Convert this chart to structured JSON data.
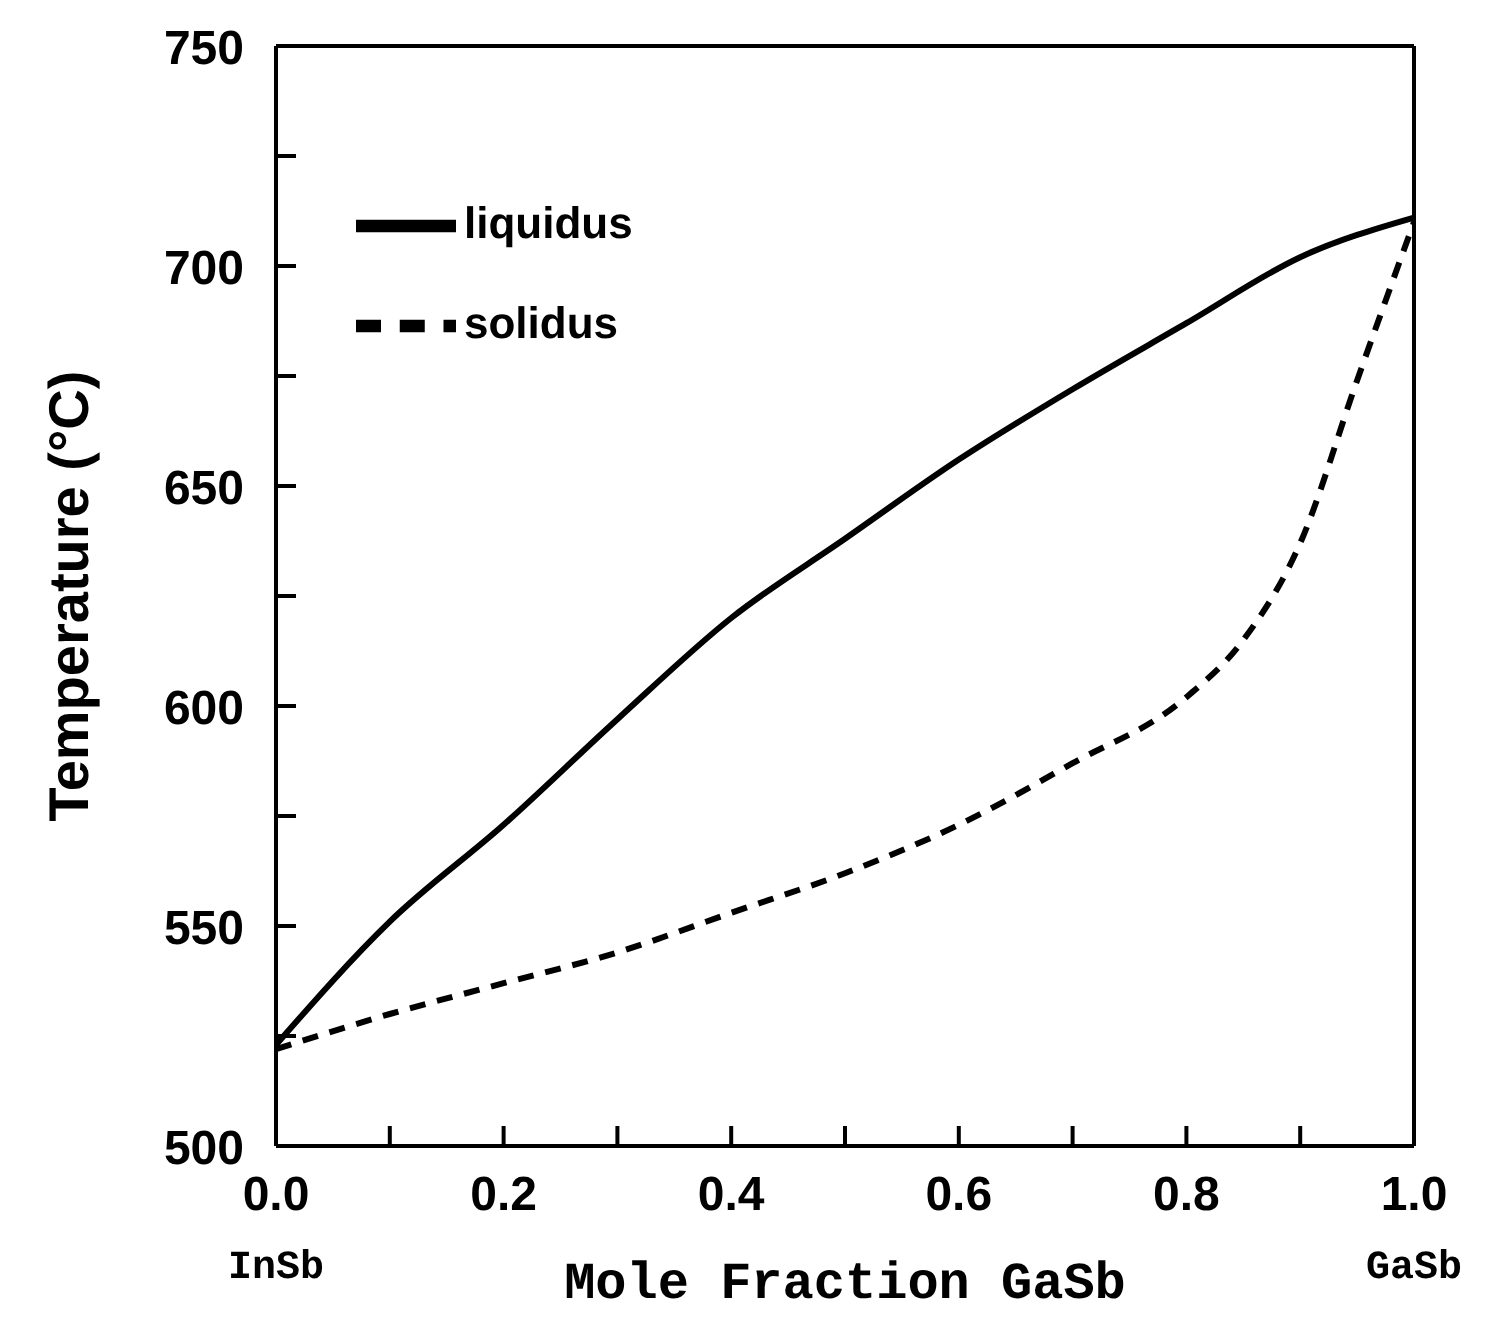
{
  "chart_data": {
    "type": "line",
    "xlabel": "Mole Fraction GaSb",
    "ylabel": "Temperature (°C)",
    "x": [
      0,
      0.1,
      0.2,
      0.3,
      0.4,
      0.5,
      0.6,
      0.7,
      0.8,
      0.9,
      1.0
    ],
    "series": [
      {
        "name": "liquidus",
        "color": "#000000",
        "line_style": "solid",
        "values": [
          523,
          551,
          573,
          597,
          620,
          638,
          656,
          672,
          687,
          702,
          711
        ]
      },
      {
        "name": "solidus",
        "color": "#000000",
        "line_style": "dashed",
        "x": [
          0,
          0.1,
          0.2,
          0.3,
          0.4,
          0.5,
          0.6,
          0.7,
          0.8,
          0.85,
          0.9,
          0.95,
          1.0
        ],
        "values": [
          522,
          530,
          537,
          544,
          553,
          562,
          573,
          587,
          602,
          615,
          637,
          674,
          710
        ]
      }
    ],
    "xlim": [
      0,
      1
    ],
    "ylim": [
      500,
      750
    ],
    "xticks": [
      {
        "value": 0,
        "label": "0.0"
      },
      {
        "value": 0.1,
        "label": null
      },
      {
        "value": 0.2,
        "label": "0.2"
      },
      {
        "value": 0.3,
        "label": null
      },
      {
        "value": 0.4,
        "label": "0.4"
      },
      {
        "value": 0.5,
        "label": null
      },
      {
        "value": 0.6,
        "label": "0.6"
      },
      {
        "value": 0.7,
        "label": null
      },
      {
        "value": 0.8,
        "label": "0.8"
      },
      {
        "value": 0.9,
        "label": null
      },
      {
        "value": 1,
        "label": "1.0"
      }
    ],
    "yticks": [
      500,
      {
        "value": 525,
        "label": null
      },
      550,
      {
        "value": 575,
        "label": null
      },
      600,
      {
        "value": 625,
        "label": null
      },
      650,
      {
        "value": 675,
        "label": null
      },
      700,
      {
        "value": 725,
        "label": null
      },
      750
    ],
    "annotations": [
      "InSb",
      "GaSb"
    ],
    "legend": "top left",
    "marker": "none"
  }
}
